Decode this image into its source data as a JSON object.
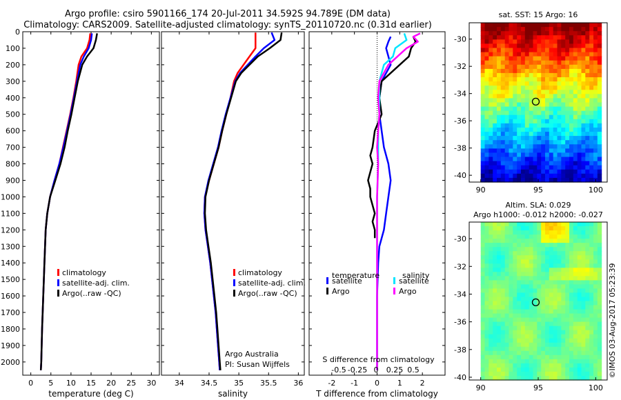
{
  "header": {
    "title_line1": "Argo profile: csiro 5901166_174 20-Jul-2011 34.592S 94.789E (DM data)",
    "title_line2": "Climatology: CARS2009. Satellite-adjusted climatology: synTS_20110720.nc (0.31d earlier)"
  },
  "colors": {
    "climatology": "#ff0000",
    "satellite": "#0000ff",
    "argo": "#000000",
    "salinity_satellite": "#00e5ff",
    "salinity_argo": "#ff00ff"
  },
  "credit": "©IMOS 03-Aug-2017 05:23:39",
  "chart_data": [
    {
      "type": "line",
      "id": "temperature",
      "xlabel": "temperature (deg C)",
      "ylabel": "",
      "xlim": [
        -2,
        32
      ],
      "ylim": [
        2080,
        0
      ],
      "x_ticks": [
        0,
        5,
        10,
        15,
        20,
        25,
        30
      ],
      "y_ticks": [
        0,
        100,
        200,
        300,
        400,
        500,
        600,
        700,
        800,
        900,
        1000,
        1100,
        1200,
        1300,
        1400,
        1500,
        1600,
        1700,
        1800,
        1900,
        2000
      ],
      "legend_position": "lower-right",
      "legend": [
        "climatology",
        "satellite-adj. clim.",
        "Argo(..raw -QC)"
      ],
      "series": [
        {
          "name": "climatology",
          "color_key": "climatology",
          "depth": [
            10,
            50,
            100,
            150,
            200,
            300,
            400,
            500,
            600,
            700,
            800,
            900,
            1000,
            1100,
            1200,
            1400,
            1600,
            1800,
            2000,
            2050
          ],
          "values": [
            14.8,
            14.6,
            14.0,
            12.6,
            11.9,
            11.3,
            10.6,
            9.8,
            8.9,
            8.0,
            7.1,
            5.9,
            4.8,
            4.1,
            3.7,
            3.4,
            3.1,
            2.8,
            2.6,
            2.5
          ]
        },
        {
          "name": "satellite-adj. clim.",
          "color_key": "satellite",
          "depth": [
            10,
            50,
            100,
            150,
            200,
            300,
            400,
            500,
            600,
            700,
            800,
            900,
            1000,
            1100,
            1200,
            1400,
            1600,
            1800,
            2000,
            2050
          ],
          "values": [
            15.2,
            15.0,
            14.4,
            13.2,
            12.3,
            11.5,
            10.7,
            9.9,
            9.0,
            8.1,
            7.1,
            5.9,
            4.8,
            4.1,
            3.7,
            3.4,
            3.1,
            2.8,
            2.6,
            2.5
          ]
        },
        {
          "name": "Argo(..raw -QC)",
          "color_key": "argo",
          "depth": [
            10,
            50,
            100,
            150,
            200,
            300,
            400,
            500,
            600,
            700,
            800,
            900,
            1000,
            1100,
            1200,
            1400,
            1600,
            1800,
            2000,
            2050
          ],
          "values": [
            16.5,
            16.2,
            15.6,
            14.0,
            12.8,
            11.7,
            10.9,
            10.1,
            9.2,
            8.4,
            7.4,
            6.1,
            4.8,
            4.1,
            3.7,
            3.4,
            3.1,
            2.8,
            2.6,
            2.5
          ]
        }
      ]
    },
    {
      "type": "line",
      "id": "salinity",
      "xlabel": "salinity",
      "ylabel": "",
      "xlim": [
        33.7,
        36.1
      ],
      "ylim": [
        2080,
        0
      ],
      "x_ticks": [
        34,
        34.5,
        35,
        35.5,
        36
      ],
      "legend_position": "lower-right",
      "legend": [
        "climatology",
        "satellite-adj. clim.",
        "Argo(..raw -QC)"
      ],
      "annotation": [
        "Argo Australia",
        "PI: Susan Wijffels"
      ],
      "series": [
        {
          "name": "climatology",
          "color_key": "climatology",
          "depth": [
            5,
            100,
            150,
            200,
            250,
            300,
            400,
            500,
            600,
            700,
            800,
            900,
            1000,
            1100,
            1200,
            1300,
            1400,
            1500,
            1600,
            1700,
            1800,
            1900,
            2000,
            2050
          ],
          "values": [
            35.28,
            35.28,
            35.18,
            35.08,
            34.98,
            34.92,
            34.86,
            34.79,
            34.72,
            34.66,
            34.58,
            34.5,
            34.43,
            34.42,
            34.44,
            34.48,
            34.52,
            34.55,
            34.58,
            34.61,
            34.63,
            34.65,
            34.67,
            34.68
          ]
        },
        {
          "name": "satellite-adj. clim.",
          "color_key": "satellite",
          "depth": [
            5,
            50,
            100,
            150,
            200,
            250,
            300,
            400,
            500,
            600,
            700,
            800,
            900,
            1000,
            1100,
            1200,
            1300,
            1400,
            1500,
            1600,
            1700,
            1800,
            1900,
            2000,
            2050
          ],
          "values": [
            35.55,
            35.6,
            35.42,
            35.28,
            35.15,
            35.02,
            34.94,
            34.86,
            34.78,
            34.71,
            34.65,
            34.57,
            34.49,
            34.43,
            34.42,
            34.44,
            34.48,
            34.52,
            34.55,
            34.58,
            34.61,
            34.63,
            34.65,
            34.67,
            34.68
          ]
        },
        {
          "name": "Argo(..raw -QC)",
          "color_key": "argo",
          "depth": [
            5,
            50,
            100,
            150,
            200,
            250,
            300,
            400,
            500,
            600,
            700,
            800,
            900,
            1000,
            1100,
            1200,
            1300,
            1400,
            1500,
            1600,
            1700,
            1800,
            1900,
            2000,
            2050
          ],
          "values": [
            35.72,
            35.7,
            35.52,
            35.32,
            35.18,
            35.04,
            34.95,
            34.87,
            34.79,
            34.72,
            34.66,
            34.58,
            34.5,
            34.44,
            34.43,
            34.45,
            34.49,
            34.53,
            34.56,
            34.59,
            34.62,
            34.64,
            34.66,
            34.68,
            34.69
          ]
        }
      ]
    },
    {
      "type": "line",
      "id": "difference",
      "xlabel": "T difference from climatology",
      "xlabel_top": "S difference from climatology",
      "xlim": [
        -3,
        3
      ],
      "ylim": [
        2080,
        0
      ],
      "x_ticks": [
        -2,
        -1,
        0,
        1,
        2
      ],
      "top_ticks": [
        -0.5,
        -0.25,
        0,
        0.25,
        0.5
      ],
      "top_tick_labels": [
        "-0.5",
        "-0.25",
        "0",
        "0.25",
        "0.5"
      ],
      "zero_line": "dotted",
      "legend_position": "lower-center",
      "legend_groups": {
        "temperature": [
          "satellite",
          "Argo"
        ],
        "salinity": [
          "satellite",
          "Argo"
        ]
      },
      "series": [
        {
          "name": "temperature satellite",
          "color_key": "satellite",
          "depth": [
            30,
            60,
            100,
            150,
            200,
            300,
            400,
            500,
            600,
            700,
            800,
            900,
            1000,
            1100,
            1200,
            1300,
            1400,
            1600,
            1800,
            2050
          ],
          "values": [
            0.6,
            0.5,
            0.4,
            0.5,
            0.6,
            0.2,
            0.1,
            0.1,
            0.2,
            0.3,
            0.5,
            0.6,
            0.5,
            0.4,
            0.3,
            0.1,
            0.05,
            0.0,
            0.0,
            0.0
          ]
        },
        {
          "name": "temperature Argo",
          "color_key": "argo",
          "depth": [
            30,
            60,
            100,
            150,
            200,
            300,
            400,
            500,
            600,
            700,
            750,
            800,
            900,
            950,
            1000,
            1050,
            1100,
            1150,
            1200,
            1250
          ],
          "values": [
            1.6,
            1.7,
            1.5,
            1.4,
            1.0,
            0.2,
            0.1,
            0.2,
            -0.1,
            -0.2,
            -0.3,
            -0.2,
            -0.4,
            -0.3,
            -0.3,
            -0.2,
            -0.1,
            -0.2,
            -0.1,
            -0.1
          ]
        },
        {
          "name": "salinity satellite",
          "color_key": "salinity_satellite",
          "depth": [
            10,
            50,
            100,
            150,
            200,
            300,
            400,
            500,
            600,
            700,
            800,
            1000,
            1200,
            1400,
            1600,
            1800,
            2050
          ],
          "values": [
            1.2,
            1.3,
            0.8,
            0.7,
            0.3,
            0.1,
            0.1,
            0.1,
            0.05,
            0.05,
            0.05,
            0.0,
            0.0,
            0.0,
            0.0,
            0.0,
            0.0
          ]
        },
        {
          "name": "salinity Argo",
          "color_key": "salinity_argo",
          "depth": [
            10,
            30,
            60,
            100,
            150,
            200,
            300,
            400,
            500,
            600,
            700,
            800,
            1000,
            1200,
            1400,
            1600,
            1800,
            2050
          ],
          "values": [
            1.9,
            1.6,
            1.8,
            1.3,
            0.9,
            0.5,
            0.1,
            0.05,
            0.1,
            0.05,
            0.0,
            0.05,
            0.0,
            0.0,
            0.0,
            0.0,
            0.0,
            0.0
          ]
        }
      ]
    },
    {
      "type": "heatmap",
      "id": "sst_map",
      "title": "sat. SST: 15 Argo: 16",
      "xlim": [
        89,
        101
      ],
      "ylim": [
        -40.5,
        -28.8
      ],
      "x_ticks": [
        90,
        95,
        100
      ],
      "y_ticks": [
        -40,
        -38,
        -36,
        -34,
        -32,
        -30
      ],
      "marker": {
        "lon": 94.789,
        "lat": -34.592
      },
      "colorscale": "jet",
      "value_range": [
        12,
        20
      ]
    },
    {
      "type": "heatmap",
      "id": "sla_map",
      "title_line1": "Altim. SLA: 0.029",
      "title_line2": "Argo h1000: -0.012 h2000: -0.027",
      "xlim": [
        89,
        101
      ],
      "ylim": [
        -40.2,
        -28.8
      ],
      "x_ticks": [
        90,
        95,
        100
      ],
      "y_ticks": [
        -40,
        -38,
        -36,
        -34,
        -32,
        -30
      ],
      "marker": {
        "lon": 94.789,
        "lat": -34.592
      },
      "colorscale": "jet",
      "value_range": [
        -0.5,
        0.5
      ]
    }
  ]
}
